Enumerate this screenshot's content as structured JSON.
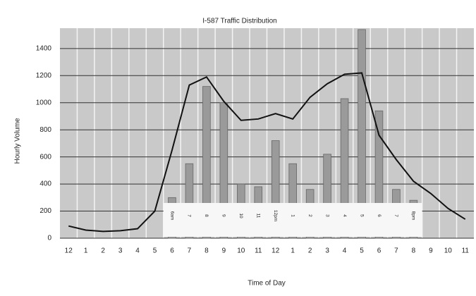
{
  "chart_data": {
    "type": "combo",
    "title": "I-587 Traffic Distribution",
    "x_label": "Time of Day",
    "y_label": "Hourly Volume",
    "categories": [
      "12",
      "1",
      "2",
      "3",
      "4",
      "5",
      "6",
      "7",
      "8",
      "9",
      "10",
      "11",
      "12",
      "1",
      "2",
      "3",
      "4",
      "5",
      "6",
      "7",
      "8",
      "9",
      "10",
      "11"
    ],
    "bar_labels": [
      null,
      null,
      null,
      null,
      null,
      null,
      "6am",
      "7",
      "8",
      "9",
      "10",
      "11",
      "12pm",
      "1",
      "2",
      "3",
      "4",
      "5",
      "6",
      "7",
      "8pm",
      null,
      null,
      null
    ],
    "series": [
      {
        "type": "bar",
        "color": "#9a9a9a",
        "values": [
          null,
          null,
          null,
          null,
          null,
          null,
          300,
          550,
          1120,
          1000,
          400,
          380,
          720,
          550,
          360,
          620,
          1030,
          1540,
          940,
          360,
          280,
          null,
          null,
          null
        ]
      },
      {
        "type": "line",
        "color": "#111111",
        "values": [
          90,
          60,
          50,
          55,
          70,
          200,
          650,
          1130,
          1190,
          1010,
          870,
          880,
          920,
          880,
          1040,
          1140,
          1210,
          1220,
          760,
          580,
          420,
          330,
          220,
          140
        ]
      }
    ],
    "ylim": [
      0,
      1550
    ],
    "yticks": [
      0,
      200,
      400,
      600,
      800,
      1000,
      1200,
      1400
    ],
    "grid": true
  }
}
